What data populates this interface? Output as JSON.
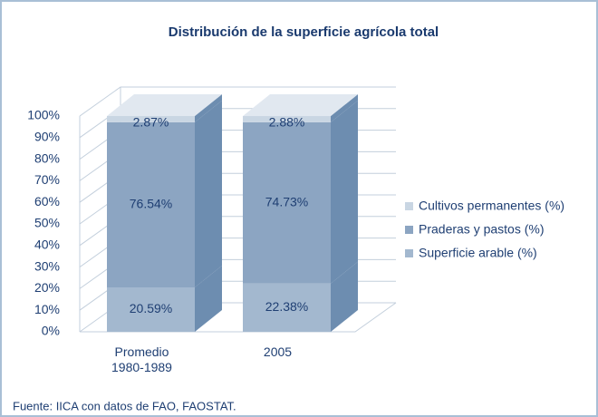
{
  "chart_data": {
    "type": "stacked-bar-3d",
    "title": "Distribución de la superficie agrícola total",
    "source": "Fuente: IICA con datos de FAO, FAOSTAT.",
    "categories": [
      "Promedio 1980-1989",
      "2005"
    ],
    "series": [
      {
        "name": "Superficie arable (%)",
        "color": "#a3b8cf",
        "values": [
          20.59,
          22.38
        ],
        "value_labels": [
          "20.59%",
          "22.38%"
        ]
      },
      {
        "name": "Praderas y pastos (%)",
        "color": "#8ca5c2",
        "values": [
          76.54,
          74.73
        ],
        "value_labels": [
          "76.54%",
          "74.73%"
        ]
      },
      {
        "name": "Cultivos permanentes (%)",
        "color": "#c9d6e3",
        "values": [
          2.87,
          2.88
        ],
        "value_labels": [
          "2.87%",
          "2.88%"
        ]
      }
    ],
    "ylim": [
      0,
      100
    ],
    "yticks": [
      {
        "value": 0,
        "label": "0%"
      },
      {
        "value": 10,
        "label": "10%"
      },
      {
        "value": 20,
        "label": "20%"
      },
      {
        "value": 30,
        "label": "30%"
      },
      {
        "value": 40,
        "label": "40%"
      },
      {
        "value": 50,
        "label": "50%"
      },
      {
        "value": 60,
        "label": "60%"
      },
      {
        "value": 70,
        "label": "70%"
      },
      {
        "value": 80,
        "label": "80%"
      },
      {
        "value": 90,
        "label": "90%"
      },
      {
        "value": 100,
        "label": "100%"
      }
    ],
    "grid": true
  }
}
